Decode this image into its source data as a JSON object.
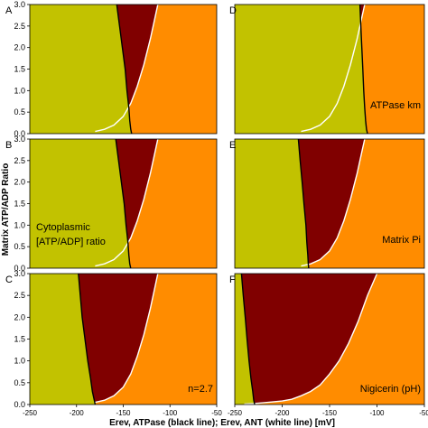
{
  "figure": {
    "ylabel": "Matrix ATP/ADP Ratio",
    "xlabel": "Erev, ATPase (black line); Erev, ANT (white line) [mV]"
  },
  "colors": {
    "region_left": "#c2c200",
    "region_middle": "#ff8c00",
    "region_right": "#808080",
    "region_overlap": "#800000",
    "atpase_line": "#000000",
    "ant_line": "#ffffff"
  },
  "chart_data": [
    {
      "type": "area",
      "panel_letter": "A",
      "annotation": "",
      "xlim": [
        -250,
        -50
      ],
      "ylim": [
        0,
        3.0
      ],
      "x_ticks": [
        -250,
        -200,
        -150,
        -100,
        -50
      ],
      "y_ticks": [
        "0.0",
        "0.5",
        "1.0",
        "1.5",
        "2.0",
        "2.5",
        "3.0"
      ],
      "series": [
        {
          "line": "black",
          "x": [
            -157,
            -154,
            -151,
            -148,
            -146,
            -144,
            -143,
            -142,
            -141
          ],
          "y": [
            3.0,
            2.5,
            2.0,
            1.5,
            1.0,
            0.6,
            0.3,
            0.1,
            0.0
          ]
        },
        {
          "line": "white",
          "x": [
            -180,
            -170,
            -160,
            -150,
            -142,
            -135,
            -128,
            -121,
            -116,
            -113
          ],
          "y": [
            0.05,
            0.1,
            0.2,
            0.4,
            0.7,
            1.1,
            1.6,
            2.2,
            2.7,
            3.0
          ]
        }
      ]
    },
    {
      "type": "area",
      "panel_letter": "D",
      "annotation": "ATPase km",
      "xlim": [
        -250,
        -50
      ],
      "ylim": [
        0,
        3.0
      ],
      "x_ticks": [
        -250,
        -200,
        -150,
        -100,
        -50
      ],
      "y_ticks": [
        "0.0",
        "0.5",
        "1.0",
        "1.5",
        "2.0",
        "2.5",
        "3.0"
      ],
      "series": [
        {
          "line": "black",
          "x": [
            -118,
            -117,
            -116,
            -115,
            -114,
            -113,
            -112,
            -111,
            -110
          ],
          "y": [
            3.0,
            2.5,
            2.0,
            1.5,
            1.0,
            0.6,
            0.3,
            0.1,
            0.0
          ]
        },
        {
          "line": "white",
          "x": [
            -180,
            -170,
            -160,
            -150,
            -142,
            -135,
            -128,
            -121,
            -116,
            -113
          ],
          "y": [
            0.05,
            0.1,
            0.2,
            0.4,
            0.7,
            1.1,
            1.6,
            2.2,
            2.7,
            3.0
          ]
        }
      ]
    },
    {
      "type": "area",
      "panel_letter": "B",
      "annotation": "Cytoplasmic [ATP/ADP] ratio",
      "xlim": [
        -250,
        -50
      ],
      "ylim": [
        0,
        3.0
      ],
      "x_ticks": [
        -250,
        -200,
        -150,
        -100,
        -50
      ],
      "y_ticks": [
        "0.0",
        "0.5",
        "1.0",
        "1.5",
        "2.0",
        "2.5",
        "3.0"
      ],
      "series": [
        {
          "line": "black",
          "x": [
            -158,
            -155,
            -152,
            -149,
            -147,
            -145,
            -144,
            -143,
            -142
          ],
          "y": [
            3.0,
            2.5,
            2.0,
            1.5,
            1.0,
            0.6,
            0.3,
            0.1,
            0.0
          ]
        },
        {
          "line": "white",
          "x": [
            -180,
            -170,
            -160,
            -150,
            -142,
            -135,
            -128,
            -121,
            -116,
            -113
          ],
          "y": [
            0.05,
            0.1,
            0.2,
            0.4,
            0.7,
            1.1,
            1.6,
            2.2,
            2.7,
            3.0
          ]
        }
      ]
    },
    {
      "type": "area",
      "panel_letter": "E",
      "annotation": "Matrix Pi",
      "xlim": [
        -250,
        -50
      ],
      "ylim": [
        0,
        3.0
      ],
      "x_ticks": [
        -250,
        -200,
        -150,
        -100,
        -50
      ],
      "y_ticks": [
        "0.0",
        "0.5",
        "1.0",
        "1.5",
        "2.0",
        "2.5",
        "3.0"
      ],
      "series": [
        {
          "line": "black",
          "x": [
            -183,
            -181,
            -179,
            -177,
            -175,
            -174,
            -173,
            -172.5,
            -172
          ],
          "y": [
            3.0,
            2.5,
            2.0,
            1.5,
            1.0,
            0.6,
            0.3,
            0.1,
            0.0
          ]
        },
        {
          "line": "white",
          "x": [
            -180,
            -170,
            -160,
            -150,
            -142,
            -135,
            -128,
            -121,
            -116,
            -113
          ],
          "y": [
            0.05,
            0.1,
            0.2,
            0.4,
            0.7,
            1.1,
            1.6,
            2.2,
            2.7,
            3.0
          ]
        }
      ]
    },
    {
      "type": "area",
      "panel_letter": "C",
      "annotation": "n=2.7",
      "xlim": [
        -250,
        -50
      ],
      "ylim": [
        0,
        3.0
      ],
      "x_ticks": [
        -250,
        -200,
        -150,
        -100,
        -50
      ],
      "y_ticks": [
        "0.0",
        "0.5",
        "1.0",
        "1.5",
        "2.0",
        "2.5",
        "3.0"
      ],
      "series": [
        {
          "line": "black",
          "x": [
            -198,
            -196,
            -194,
            -191,
            -188,
            -185,
            -183,
            -181,
            -180
          ],
          "y": [
            3.0,
            2.5,
            2.0,
            1.5,
            1.0,
            0.6,
            0.3,
            0.1,
            0.0
          ]
        },
        {
          "line": "white",
          "x": [
            -180,
            -170,
            -160,
            -150,
            -142,
            -135,
            -128,
            -121,
            -116,
            -113
          ],
          "y": [
            0.05,
            0.1,
            0.2,
            0.4,
            0.7,
            1.1,
            1.6,
            2.2,
            2.7,
            3.0
          ]
        }
      ]
    },
    {
      "type": "area",
      "panel_letter": "F",
      "annotation": "Nigicerin (pH)",
      "xlim": [
        -250,
        -50
      ],
      "ylim": [
        0,
        3.0
      ],
      "x_ticks": [
        -250,
        -200,
        -150,
        -100,
        -50
      ],
      "y_ticks": [
        "0.0",
        "0.5",
        "1.0",
        "1.5",
        "2.0",
        "2.5",
        "3.0"
      ],
      "series": [
        {
          "line": "black",
          "x": [
            -243,
            -241,
            -239,
            -237,
            -235,
            -233,
            -231,
            -230,
            -229
          ],
          "y": [
            3.0,
            2.5,
            2.0,
            1.5,
            1.0,
            0.6,
            0.3,
            0.1,
            0.0
          ]
        },
        {
          "line": "white",
          "x": [
            -240,
            -230,
            -220,
            -210,
            -200,
            -190,
            -180,
            -170,
            -160,
            -150,
            -140,
            -130,
            -120,
            -110,
            -100
          ],
          "y": [
            0.01,
            0.02,
            0.04,
            0.06,
            0.08,
            0.12,
            0.2,
            0.3,
            0.45,
            0.7,
            1.0,
            1.4,
            1.9,
            2.5,
            3.0
          ]
        }
      ]
    }
  ]
}
